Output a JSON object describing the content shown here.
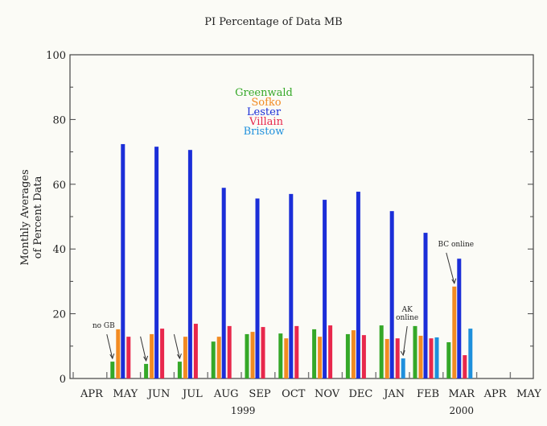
{
  "chart_data": {
    "type": "bar",
    "title": "PI Percentage of Data MB",
    "ylabel": [
      "Monthly Averages",
      "of Percent Data"
    ],
    "xlabel": "",
    "ylim": [
      0,
      100
    ],
    "yticks": [
      0,
      20,
      40,
      60,
      80,
      100
    ],
    "categories": [
      "APR",
      "MAY",
      "JUN",
      "JUL",
      "AUG",
      "SEP",
      "OCT",
      "NOV",
      "DEC",
      "JAN",
      "FEB",
      "MAR",
      "APR",
      "MAY"
    ],
    "year_labels": [
      {
        "label": "1999",
        "from": 1,
        "to": 8
      },
      {
        "label": "2000",
        "from": 9,
        "to": 13
      }
    ],
    "legend_placement": "top-center",
    "series": [
      {
        "name": "Greenwald",
        "color": "#35a828",
        "values": [
          null,
          5.2,
          4.5,
          5.2,
          11.4,
          13.7,
          13.9,
          15.2,
          13.7,
          16.4,
          16.2,
          11.2,
          null,
          null
        ]
      },
      {
        "name": "Sofko",
        "color": "#f28b22",
        "values": [
          null,
          15.2,
          13.7,
          12.9,
          12.9,
          14.4,
          12.4,
          12.9,
          14.9,
          12.2,
          13.2,
          28.4,
          null,
          null
        ]
      },
      {
        "name": "Lester",
        "color": "#1b2ed8",
        "values": [
          null,
          72.4,
          71.6,
          70.6,
          58.9,
          55.6,
          57.0,
          55.2,
          57.7,
          51.7,
          45.0,
          37.0,
          null,
          null
        ]
      },
      {
        "name": "Villain",
        "color": "#e8284c",
        "values": [
          null,
          12.9,
          15.4,
          16.9,
          16.2,
          15.9,
          16.2,
          16.4,
          13.4,
          12.4,
          12.4,
          7.2,
          null,
          null
        ]
      },
      {
        "name": "Bristow",
        "color": "#1e90dc",
        "values": [
          null,
          null,
          null,
          null,
          null,
          null,
          null,
          null,
          null,
          6.2,
          12.7,
          15.4,
          null,
          null
        ]
      }
    ],
    "annotations": [
      {
        "text": [
          "no GB"
        ],
        "month_index": 1,
        "series": "Greenwald"
      },
      {
        "text": [],
        "month_index": 2,
        "series": "Greenwald"
      },
      {
        "text": [],
        "month_index": 3,
        "series": "Greenwald"
      },
      {
        "text": [
          "AK",
          "online"
        ],
        "month_index": 9,
        "series": "Bristow"
      },
      {
        "text": [
          "BC online"
        ],
        "month_index": 11,
        "series": "Sofko"
      }
    ]
  }
}
